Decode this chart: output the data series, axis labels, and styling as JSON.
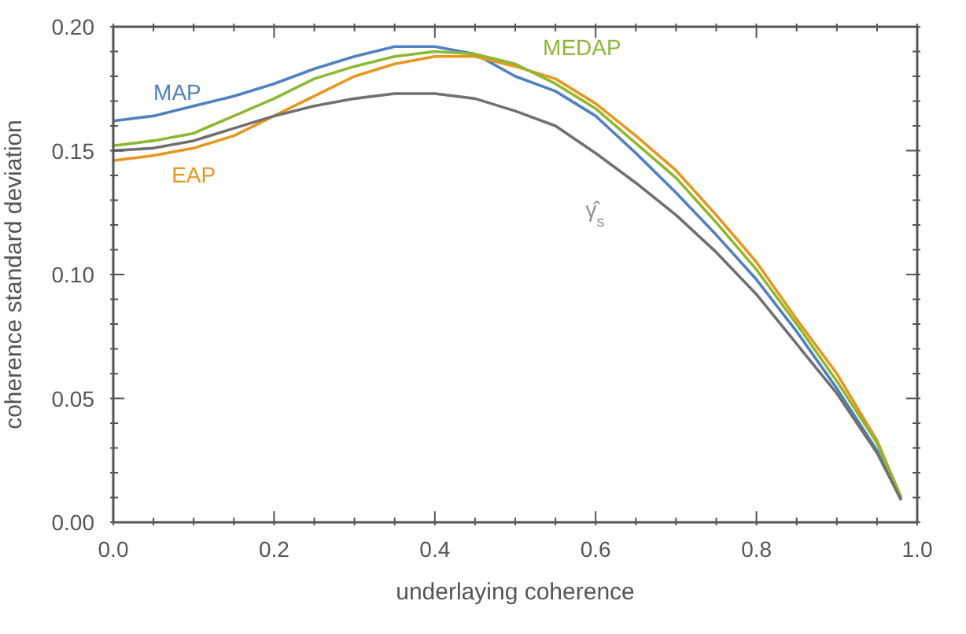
{
  "chart_data": {
    "type": "line",
    "xlabel": "underlaying coherence",
    "ylabel": "coherence standard deviation",
    "x": [
      0,
      0.05,
      0.1,
      0.15,
      0.2,
      0.25,
      0.3,
      0.35,
      0.4,
      0.45,
      0.5,
      0.55,
      0.6,
      0.65,
      0.7,
      0.75,
      0.8,
      0.85,
      0.9,
      0.95,
      0.98
    ],
    "series": [
      {
        "name": "MAP",
        "color": "#5080c0",
        "values": [
          0.162,
          0.164,
          0.168,
          0.172,
          0.177,
          0.183,
          0.188,
          0.192,
          0.192,
          0.189,
          0.18,
          0.174,
          0.164,
          0.149,
          0.133,
          0.116,
          0.098,
          0.077,
          0.054,
          0.029,
          0.009
        ]
      },
      {
        "name": "EAP",
        "color": "#e8961e",
        "values": [
          0.146,
          0.148,
          0.151,
          0.156,
          0.164,
          0.172,
          0.18,
          0.185,
          0.188,
          0.188,
          0.184,
          0.179,
          0.169,
          0.156,
          0.142,
          0.124,
          0.105,
          0.082,
          0.06,
          0.033,
          0.01
        ]
      },
      {
        "name": "MEDAP",
        "color": "#8cb832",
        "values": [
          0.152,
          0.154,
          0.157,
          0.164,
          0.171,
          0.179,
          0.184,
          0.188,
          0.19,
          0.189,
          0.185,
          0.177,
          0.167,
          0.153,
          0.139,
          0.121,
          0.102,
          0.08,
          0.057,
          0.032,
          0.01
        ]
      },
      {
        "name": "γ̂$_{s}$",
        "color": "#707070",
        "values": [
          0.15,
          0.151,
          0.154,
          0.159,
          0.164,
          0.168,
          0.171,
          0.173,
          0.173,
          0.171,
          0.166,
          0.16,
          0.149,
          0.137,
          0.124,
          0.109,
          0.092,
          0.072,
          0.052,
          0.028,
          0.009
        ]
      }
    ],
    "xlim": [
      0,
      1
    ],
    "xticks": [
      {
        "value": 0,
        "label": "0.0"
      },
      {
        "value": 0.05,
        "label": null
      },
      0.2,
      {
        "value": 0.1,
        "label": null
      },
      {
        "value": 0.15,
        "label": null
      },
      {
        "value": 0.25,
        "label": null
      },
      {
        "value": 0.3,
        "label": null
      },
      {
        "value": 0.35,
        "label": null
      },
      0.4,
      {
        "value": 0.45,
        "label": null
      },
      {
        "value": 0.5,
        "label": null
      },
      {
        "value": 0.55,
        "label": null
      },
      0.6,
      {
        "value": 0.65,
        "label": null
      },
      {
        "value": 0.7,
        "label": null
      },
      {
        "value": 0.75,
        "label": null
      },
      0.8,
      {
        "value": 0.85,
        "label": null
      },
      {
        "value": 0.9,
        "label": null
      },
      {
        "value": 0.95,
        "label": null
      },
      {
        "value": 1,
        "label": "1.0"
      }
    ],
    "ylim": [
      0,
      0.2
    ],
    "yticks": [
      {
        "value": 0,
        "label": "0.00"
      },
      {
        "value": 0.01,
        "label": null
      },
      {
        "value": 0.02,
        "label": null
      },
      {
        "value": 0.03,
        "label": null
      },
      {
        "value": 0.04,
        "label": null
      },
      0.05,
      {
        "value": 0.06,
        "label": null
      },
      {
        "value": 0.07,
        "label": null
      },
      {
        "value": 0.08,
        "label": null
      },
      {
        "value": 0.09,
        "label": null
      },
      {
        "value": 0.1,
        "label": "0.10"
      },
      {
        "value": 0.11,
        "label": null
      },
      {
        "value": 0.12,
        "label": null
      },
      {
        "value": 0.13,
        "label": null
      },
      {
        "value": 0.14,
        "label": null
      },
      0.15,
      {
        "value": 0.16,
        "label": null
      },
      {
        "value": 0.17,
        "label": null
      },
      {
        "value": 0.18,
        "label": null
      },
      {
        "value": 0.19,
        "label": null
      },
      {
        "value": 0.2,
        "label": "0.20"
      }
    ],
    "grid": false,
    "legend": false,
    "marker": "none",
    "line_style": "solid"
  }
}
